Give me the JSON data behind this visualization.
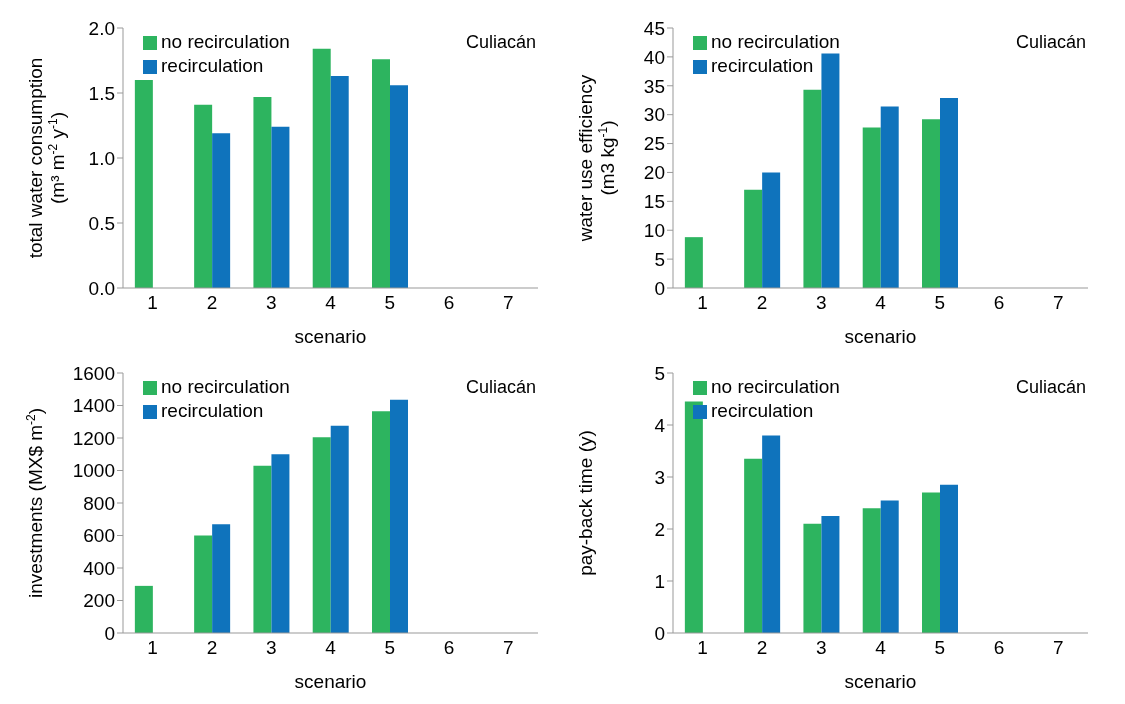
{
  "chart_data": [
    {
      "type": "bar",
      "categories": [
        "1",
        "2",
        "3",
        "4",
        "5",
        "6",
        "7"
      ],
      "xlabel": "scenario",
      "ylabel": "total water consumption\n(m³ m$^{-2}$ y$^{-1}$)",
      "ylim": [
        0,
        2
      ],
      "yticks": [
        {
          "value": 0,
          "label": "0.0"
        },
        {
          "value": 0.5,
          "label": "0.5"
        },
        {
          "value": 1,
          "label": "1.0"
        },
        {
          "value": 1.5,
          "label": "1.5"
        },
        {
          "value": 2,
          "label": "2.0"
        }
      ],
      "legend": "top left",
      "annotations": [
        "Culiacán"
      ],
      "series": [
        {
          "name": "no recirculation",
          "color": "#2db45f",
          "values": [
            1.6,
            1.41,
            1.47,
            1.84,
            1.76,
            null,
            null
          ]
        },
        {
          "name": "recirculation",
          "color": "#0f73bc",
          "values": [
            null,
            1.19,
            1.24,
            1.63,
            1.56,
            null,
            null
          ]
        }
      ]
    },
    {
      "type": "bar",
      "categories": [
        "1",
        "2",
        "3",
        "4",
        "5",
        "6",
        "7"
      ],
      "xlabel": "scenario",
      "ylabel": "water use efficiency\n(m3 kg$^{-1}$)",
      "ylim": [
        0,
        45
      ],
      "yticks": [
        0,
        5,
        10,
        15,
        20,
        25,
        30,
        35,
        40,
        45
      ],
      "legend": "top left",
      "annotations": [
        "Culiacán"
      ],
      "series": [
        {
          "name": "no recirculation",
          "color": "#2db45f",
          "values": [
            8.8,
            17,
            34.3,
            27.8,
            29.2,
            null,
            null
          ]
        },
        {
          "name": "recirculation",
          "color": "#0f73bc",
          "values": [
            null,
            20,
            40.6,
            31.4,
            32.9,
            null,
            null
          ]
        }
      ]
    },
    {
      "type": "bar",
      "categories": [
        "1",
        "2",
        "3",
        "4",
        "5",
        "6",
        "7"
      ],
      "xlabel": "scenario",
      "ylabel": "investments  (MX$ m$^{-2}$)",
      "ylim": [
        0,
        1600
      ],
      "yticks": [
        0,
        200,
        400,
        600,
        800,
        1000,
        1200,
        1400,
        1600
      ],
      "legend": "top left",
      "annotations": [
        "Culiacán"
      ],
      "series": [
        {
          "name": "no recirculation",
          "color": "#2db45f",
          "values": [
            290,
            600,
            1030,
            1205,
            1365,
            null,
            null
          ]
        },
        {
          "name": "recirculation",
          "color": "#0f73bc",
          "values": [
            null,
            670,
            1100,
            1275,
            1435,
            null,
            null
          ]
        }
      ]
    },
    {
      "type": "bar",
      "categories": [
        "1",
        "2",
        "3",
        "4",
        "5",
        "6",
        "7"
      ],
      "xlabel": "scenario",
      "ylabel": "pay-back time  (y)",
      "ylim": [
        0,
        5
      ],
      "yticks": [
        0,
        1,
        2,
        3,
        4,
        5
      ],
      "legend": "top left",
      "annotations": [
        "Culiacán"
      ],
      "series": [
        {
          "name": "no recirculation",
          "color": "#2db45f",
          "values": [
            4.45,
            3.35,
            2.1,
            2.4,
            2.7,
            null,
            null
          ]
        },
        {
          "name": "recirculation",
          "color": "#0f73bc",
          "values": [
            null,
            3.8,
            2.25,
            2.55,
            2.85,
            null,
            null
          ]
        }
      ]
    }
  ]
}
